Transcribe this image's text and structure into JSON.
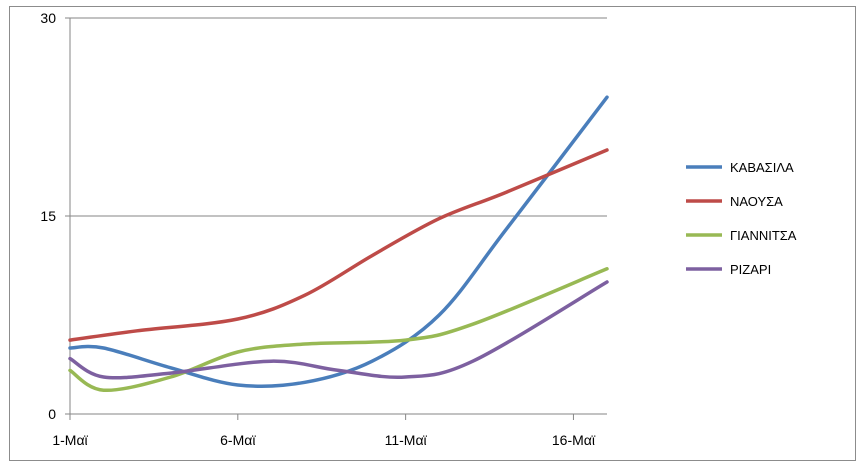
{
  "chart_data": {
    "type": "line",
    "title": "",
    "xlabel": "",
    "ylabel": "",
    "x": [
      1,
      6,
      11,
      16
    ],
    "xtick_labels": [
      "1-Μαϊ",
      "6-Μαϊ",
      "11-Μαϊ",
      "16-Μαϊ"
    ],
    "xlim": [
      1,
      17
    ],
    "ylim": [
      0,
      30
    ],
    "yticks": [
      0,
      15,
      30
    ],
    "grid": "horizontal",
    "legend_position": "right",
    "series": [
      {
        "name": "ΚΑΒΑΣΙΛΑ",
        "color": "#4a7ebb",
        "points": [
          [
            1,
            5
          ],
          [
            2,
            5
          ],
          [
            4,
            3.5
          ],
          [
            6,
            2.2
          ],
          [
            8,
            2.4
          ],
          [
            10,
            4
          ],
          [
            12,
            7.5
          ],
          [
            14,
            14
          ],
          [
            17,
            24
          ]
        ]
      },
      {
        "name": "ΝΑΟΥΣΑ",
        "color": "#be4b48",
        "points": [
          [
            1,
            5.6
          ],
          [
            3,
            6.3
          ],
          [
            6,
            7.2
          ],
          [
            8,
            9
          ],
          [
            10,
            12
          ],
          [
            12,
            14.8
          ],
          [
            14,
            16.8
          ],
          [
            17,
            20
          ]
        ]
      },
      {
        "name": "ΓΙΑΝΝΙΤΣΑ",
        "color": "#98b954",
        "points": [
          [
            1,
            3.3
          ],
          [
            2,
            1.8
          ],
          [
            4,
            2.8
          ],
          [
            6,
            4.7
          ],
          [
            8,
            5.3
          ],
          [
            11,
            5.6
          ],
          [
            13,
            6.8
          ],
          [
            17,
            11
          ]
        ]
      },
      {
        "name": "ΡΙΖΑΡΙ",
        "color": "#7d60a0",
        "points": [
          [
            1,
            4.2
          ],
          [
            2,
            2.8
          ],
          [
            4,
            3.1
          ],
          [
            7,
            4
          ],
          [
            9,
            3.3
          ],
          [
            11,
            2.8
          ],
          [
            13,
            4
          ],
          [
            17,
            10
          ]
        ]
      }
    ]
  }
}
